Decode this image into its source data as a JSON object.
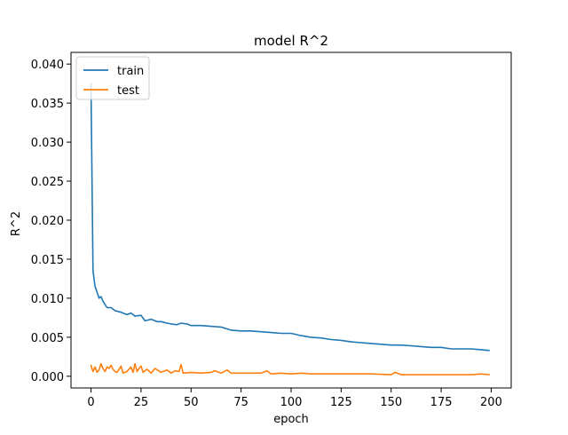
{
  "chart_data": {
    "type": "line",
    "title": "model R^2",
    "xlabel": "epoch",
    "ylabel": "R^2",
    "xlim": [
      -10,
      210
    ],
    "ylim": [
      -0.0015,
      0.0415
    ],
    "xticks": [
      0,
      25,
      50,
      75,
      100,
      125,
      150,
      175,
      200
    ],
    "xtick_labels": [
      "0",
      "25",
      "50",
      "75",
      "100",
      "125",
      "150",
      "175",
      "200"
    ],
    "yticks": [
      0.0,
      0.005,
      0.01,
      0.015,
      0.02,
      0.025,
      0.03,
      0.035,
      0.04
    ],
    "ytick_labels": [
      "0.000",
      "0.005",
      "0.010",
      "0.015",
      "0.020",
      "0.025",
      "0.030",
      "0.035",
      "0.040"
    ],
    "grid": false,
    "legend": "upper-left",
    "series": [
      {
        "name": "train",
        "color": "#1f77b4",
        "x": [
          0,
          1,
          2,
          3,
          4,
          5,
          6,
          7,
          8,
          10,
          12,
          15,
          18,
          20,
          22,
          25,
          27,
          30,
          33,
          35,
          38,
          40,
          43,
          45,
          48,
          50,
          55,
          60,
          65,
          70,
          75,
          80,
          85,
          90,
          95,
          100,
          105,
          110,
          115,
          120,
          125,
          130,
          135,
          140,
          145,
          150,
          155,
          160,
          165,
          170,
          175,
          180,
          185,
          190,
          195,
          199
        ],
        "y": [
          0.0375,
          0.0135,
          0.0115,
          0.0108,
          0.01,
          0.0102,
          0.0096,
          0.0092,
          0.0088,
          0.0088,
          0.0084,
          0.0082,
          0.0079,
          0.0081,
          0.0077,
          0.0078,
          0.0071,
          0.0073,
          0.007,
          0.007,
          0.0068,
          0.0067,
          0.0066,
          0.0068,
          0.0067,
          0.0065,
          0.0065,
          0.0064,
          0.0063,
          0.0059,
          0.0058,
          0.0058,
          0.0057,
          0.0056,
          0.0055,
          0.0055,
          0.0052,
          0.005,
          0.0049,
          0.0047,
          0.0046,
          0.0044,
          0.0043,
          0.0042,
          0.0041,
          0.004,
          0.004,
          0.0039,
          0.0038,
          0.0037,
          0.0037,
          0.0035,
          0.0035,
          0.0035,
          0.0034,
          0.0033
        ]
      },
      {
        "name": "test",
        "color": "#ff7f0e",
        "x": [
          0,
          1,
          2,
          3,
          4,
          5,
          6,
          7,
          8,
          9,
          10,
          11,
          12,
          13,
          14,
          15,
          16,
          18,
          20,
          21,
          22,
          23,
          24,
          25,
          26,
          28,
          30,
          32,
          35,
          38,
          40,
          42,
          44,
          45,
          46,
          50,
          55,
          60,
          62,
          65,
          68,
          70,
          75,
          80,
          85,
          88,
          90,
          95,
          100,
          105,
          110,
          115,
          120,
          125,
          130,
          140,
          150,
          152,
          155,
          160,
          170,
          180,
          190,
          195,
          199
        ],
        "y": [
          0.0014,
          0.0006,
          0.0012,
          0.0005,
          0.0008,
          0.0016,
          0.001,
          0.0006,
          0.0012,
          0.001,
          0.0014,
          0.0009,
          0.0006,
          0.0005,
          0.0009,
          0.0013,
          0.0004,
          0.0006,
          0.0012,
          0.0005,
          0.0016,
          0.0006,
          0.001,
          0.0013,
          0.0005,
          0.0009,
          0.0004,
          0.001,
          0.0005,
          0.0008,
          0.0004,
          0.0007,
          0.0006,
          0.0015,
          0.0004,
          0.0005,
          0.0004,
          0.0005,
          0.0007,
          0.0004,
          0.0008,
          0.0004,
          0.0004,
          0.0004,
          0.0004,
          0.0007,
          0.0003,
          0.0004,
          0.0003,
          0.0004,
          0.0003,
          0.0003,
          0.0003,
          0.0003,
          0.0003,
          0.0003,
          0.0002,
          0.0005,
          0.0002,
          0.0002,
          0.0002,
          0.0002,
          0.0002,
          0.0003,
          0.0002
        ]
      }
    ]
  }
}
